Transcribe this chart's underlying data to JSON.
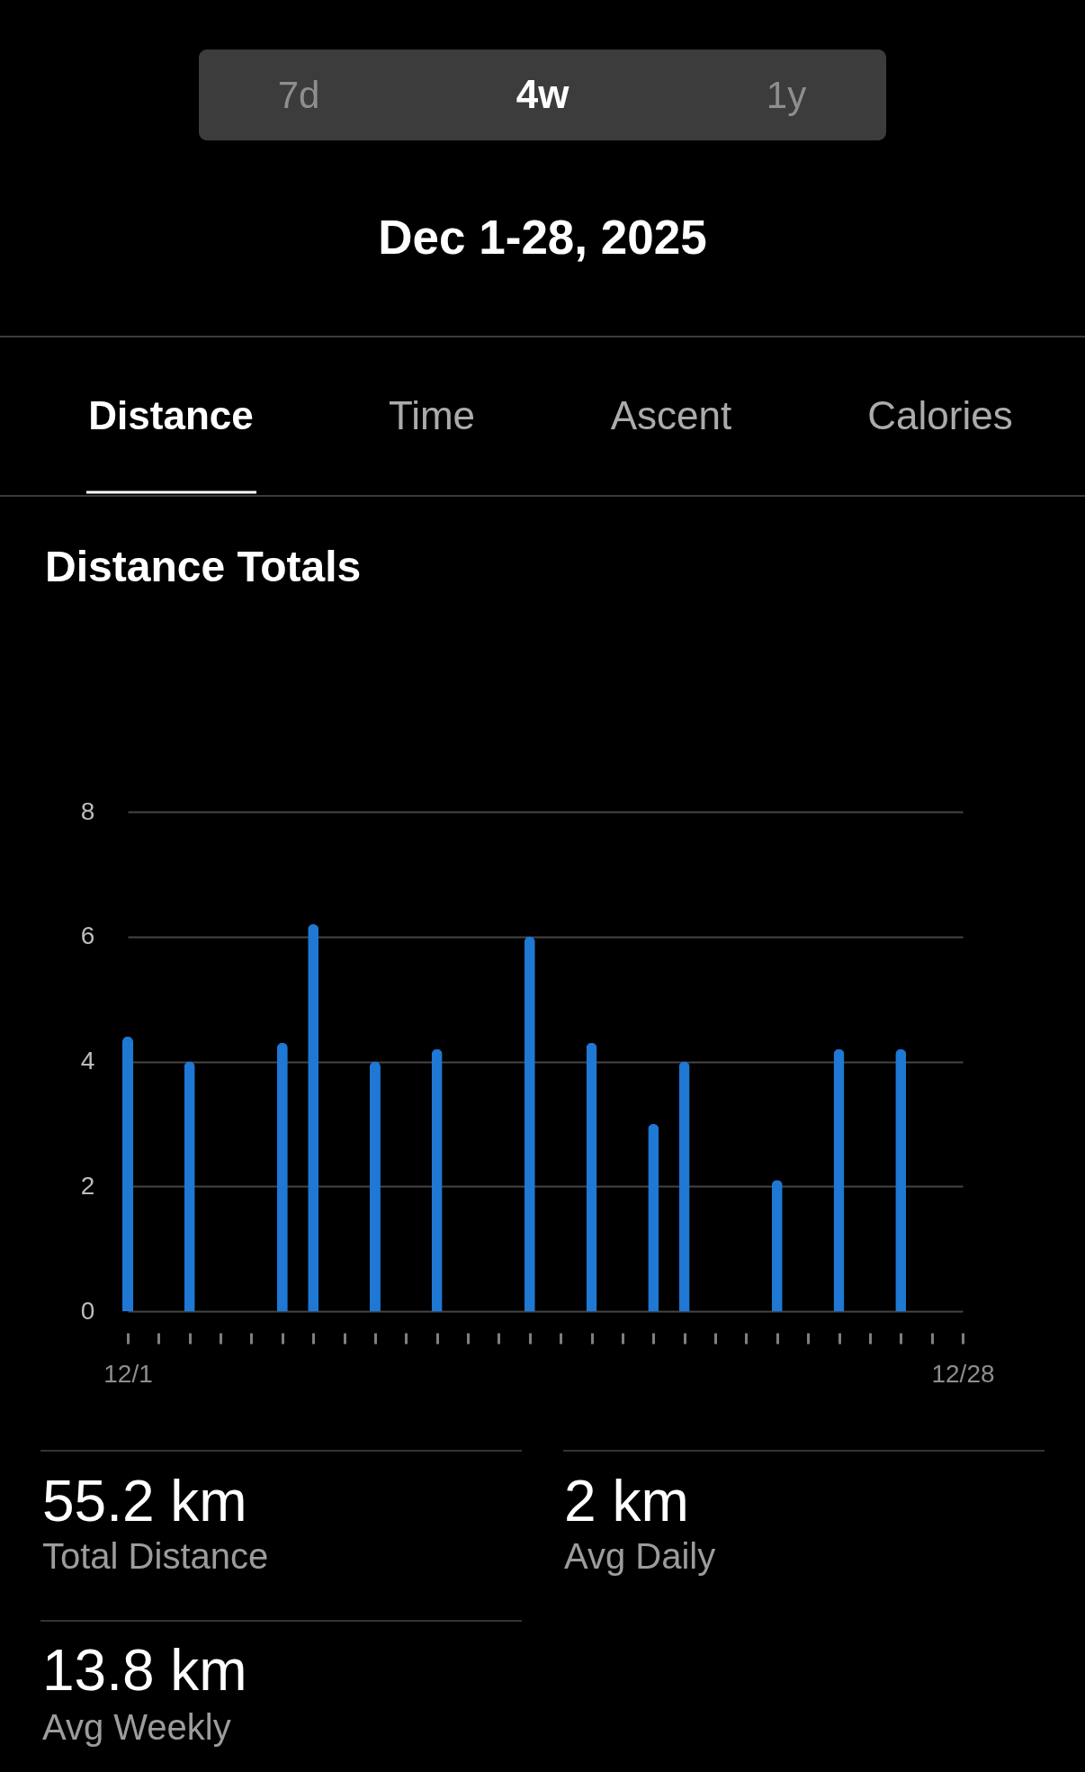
{
  "chart_data": {
    "type": "bar",
    "title": "Distance Totals",
    "categories": [
      "12/1",
      null,
      null,
      null,
      null,
      null,
      null,
      null,
      null,
      null,
      null,
      null,
      null,
      null,
      null,
      null,
      null,
      null,
      null,
      null,
      null,
      null,
      null,
      null,
      null,
      null,
      null,
      "12/28"
    ],
    "values": [
      4.4,
      null,
      4.0,
      null,
      null,
      4.3,
      6.2,
      null,
      4.0,
      null,
      4.2,
      null,
      null,
      6.0,
      null,
      4.3,
      null,
      3.0,
      4.0,
      null,
      null,
      2.1,
      null,
      4.2,
      null,
      4.2,
      null,
      null
    ],
    "color": "#1e78d4",
    "ylim": [
      0,
      8
    ],
    "yticks": [
      0,
      2,
      4,
      6,
      8
    ],
    "grid": "y",
    "annotations": [
      "7d",
      "4w",
      "1y",
      "Dec 1-28, 2025",
      "Distance",
      "Time",
      "Ascent",
      "Calories",
      "55.2 km",
      "Total Distance",
      "2 km",
      "Avg Daily",
      "13.8 km",
      "Avg Weekly"
    ]
  }
}
